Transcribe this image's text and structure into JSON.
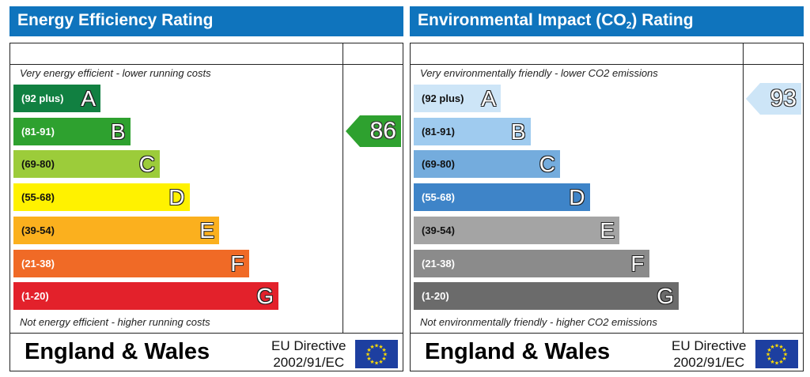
{
  "colors": {
    "title_bg": "#0f74bd",
    "energy_bands": [
      "#118041",
      "#2ea12f",
      "#9ccc3a",
      "#fff200",
      "#fbb01e",
      "#f06a26",
      "#e3212b"
    ],
    "env_bands": [
      "#cde5f7",
      "#9fcbef",
      "#74acdd",
      "#3e84c8",
      "#a4a4a4",
      "#8b8b8b",
      "#6b6b6b"
    ],
    "eu_flag_blue": "#1d3fa0",
    "eu_flag_stars": "#ffdd00"
  },
  "chart_data": [
    {
      "type": "bar",
      "title": "Energy Efficiency Rating",
      "top_note": "Very energy efficient - lower running costs",
      "bottom_note": "Not energy efficient - higher running costs",
      "bands": [
        {
          "range": "(92 plus)",
          "letter": "A"
        },
        {
          "range": "(81-91)",
          "letter": "B"
        },
        {
          "range": "(69-80)",
          "letter": "C"
        },
        {
          "range": "(55-68)",
          "letter": "D"
        },
        {
          "range": "(39-54)",
          "letter": "E"
        },
        {
          "range": "(21-38)",
          "letter": "F"
        },
        {
          "range": "(1-20)",
          "letter": "G"
        }
      ],
      "current_value": "86",
      "current_band": "B",
      "footer": {
        "region": "England & Wales",
        "directive_line1": "EU Directive",
        "directive_line2": "2002/91/EC"
      }
    },
    {
      "type": "bar",
      "title_prefix": "Environmental Impact (CO",
      "title_sub": "2",
      "title_suffix": ") Rating",
      "top_note": "Very environmentally friendly - lower CO2 emissions",
      "bottom_note": "Not environmentally friendly - higher CO2 emissions",
      "bands": [
        {
          "range": "(92 plus)",
          "letter": "A"
        },
        {
          "range": "(81-91)",
          "letter": "B"
        },
        {
          "range": "(69-80)",
          "letter": "C"
        },
        {
          "range": "(55-68)",
          "letter": "D"
        },
        {
          "range": "(39-54)",
          "letter": "E"
        },
        {
          "range": "(21-38)",
          "letter": "F"
        },
        {
          "range": "(1-20)",
          "letter": "G"
        }
      ],
      "current_value": "93",
      "current_band": "A",
      "footer": {
        "region": "England & Wales",
        "directive_line1": "EU Directive",
        "directive_line2": "2002/91/EC"
      }
    }
  ]
}
